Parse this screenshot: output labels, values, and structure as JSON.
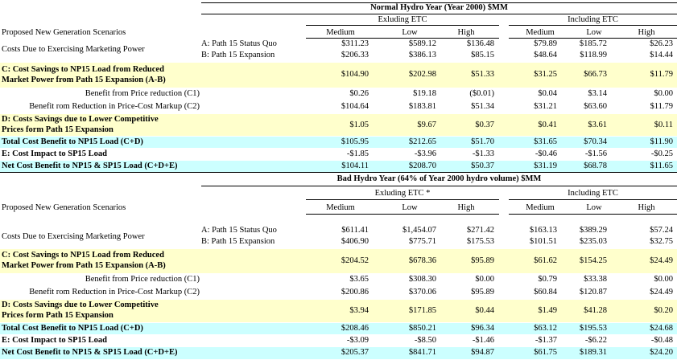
{
  "tables": [
    {
      "title": "Normal Hydro Year (Year 2000) $MM",
      "group_excl": "Exluding ETC",
      "group_incl": "Including  ETC",
      "scen_label": "Proposed New Generation Scenarios",
      "col_heads": [
        "Medium",
        "Low",
        "High",
        "Medium",
        "Low",
        "High"
      ],
      "costs_label": "Costs Due to Exercising Marketing Power",
      "rowA": {
        "label": "A: Path 15 Status Quo",
        "vals": [
          "$311.23",
          "$589.12",
          "$136.48",
          "$79.89",
          "$185.72",
          "$26.23"
        ]
      },
      "rowB": {
        "label": "B: Path 15 Expansion",
        "vals": [
          "$206.33",
          "$386.13",
          "$85.15",
          "$48.64",
          "$118.99",
          "$14.44"
        ]
      },
      "rowC": {
        "label1": "C: Cost Savings to NP15 Load  from Reduced",
        "label2": "Market Power from Path 15 Expansion (A-B)",
        "vals": [
          "$104.90",
          "$202.98",
          "$51.33",
          "$31.25",
          "$66.73",
          "$11.79"
        ]
      },
      "rowC1": {
        "label": "Benefit from Price reduction (C1)",
        "vals": [
          "$0.26",
          "$19.18",
          "($0.01)",
          "$0.04",
          "$3.14",
          "$0.00"
        ]
      },
      "rowC2": {
        "label": "Benefit rom Reduction in Price-Cost Markup (C2)",
        "vals": [
          "$104.64",
          "$183.81",
          "$51.34",
          "$31.21",
          "$63.60",
          "$11.79"
        ]
      },
      "rowD": {
        "label1": "D: Costs Savings due to Lower Competitive",
        "label2": "Prices form Path 15 Expansion",
        "vals": [
          "$1.05",
          "$9.67",
          "$0.37",
          "$0.41",
          "$3.61",
          "$0.11"
        ]
      },
      "rowTot": {
        "label": "Total Cost Benefit to NP15 Load (C+D)",
        "vals": [
          "$105.95",
          "$212.65",
          "$51.70",
          "$31.65",
          "$70.34",
          "$11.90"
        ]
      },
      "rowE": {
        "label": "E: Cost Impact to SP15 Load",
        "vals": [
          "-$1.85",
          "-$3.96",
          "-$1.33",
          "-$0.46",
          "-$1.56",
          "-$0.25"
        ]
      },
      "rowNet": {
        "label": "Net Cost Benefit to NP15 & SP15 Load  (C+D+E)",
        "vals": [
          "$104.11",
          "$208.70",
          "$50.37",
          "$31.19",
          "$68.78",
          "$11.65"
        ]
      }
    },
    {
      "title": "Bad Hydro Year (64% of Year 2000 hydro volume) $MM",
      "group_excl": "Exluding ETC *",
      "group_incl": "Including  ETC",
      "scen_label": "Proposed New Generation Scenarios",
      "col_heads": [
        "Medium",
        "Low",
        "High",
        "Medium",
        "Low",
        "High"
      ],
      "costs_label": "Costs Due to Exercising Marketing Power",
      "rowA": {
        "label": "A: Path 15 Status Quo",
        "vals": [
          "$611.41",
          "$1,454.07",
          "$271.42",
          "$163.13",
          "$389.29",
          "$57.24"
        ]
      },
      "rowB": {
        "label": "B: Path 15 Expansion",
        "vals": [
          "$406.90",
          "$775.71",
          "$175.53",
          "$101.51",
          "$235.03",
          "$32.75"
        ]
      },
      "rowC": {
        "label1": "C: Cost Savings to NP15 Load  from Reduced",
        "label2": "Market Power from Path 15 Expansion (A-B)",
        "vals": [
          "$204.52",
          "$678.36",
          "$95.89",
          "$61.62",
          "$154.25",
          "$24.49"
        ]
      },
      "rowC1": {
        "label": "Benefit from Price reduction (C1)",
        "vals": [
          "$3.65",
          "$308.30",
          "$0.00",
          "$0.79",
          "$33.38",
          "$0.00"
        ]
      },
      "rowC2": {
        "label": "Benefit rom Reduction in Price-Cost Markup (C2)",
        "vals": [
          "$200.86",
          "$370.06",
          "$95.89",
          "$60.84",
          "$120.87",
          "$24.49"
        ]
      },
      "rowD": {
        "label1": "D: Costs Savings due to Lower Competitive",
        "label2": "Prices form Path 15 Expansion",
        "vals": [
          "$3.94",
          "$171.85",
          "$0.44",
          "$1.49",
          "$41.28",
          "$0.20"
        ]
      },
      "rowTot": {
        "label": "Total Cost Benefit to NP15 Load (C+D)",
        "vals": [
          "$208.46",
          "$850.21",
          "$96.34",
          "$63.12",
          "$195.53",
          "$24.68"
        ]
      },
      "rowE": {
        "label": "E: Cost Impact to SP15 Load",
        "vals": [
          "-$3.09",
          "-$8.50",
          "-$1.46",
          "-$1.37",
          "-$6.22",
          "-$0.48"
        ]
      },
      "rowNet": {
        "label": "Net Cost Benefit to NP15 & SP15 Load  (C+D+E)",
        "vals": [
          "$205.37",
          "$841.71",
          "$94.87",
          "$61.75",
          "$189.31",
          "$24.20"
        ]
      }
    }
  ]
}
